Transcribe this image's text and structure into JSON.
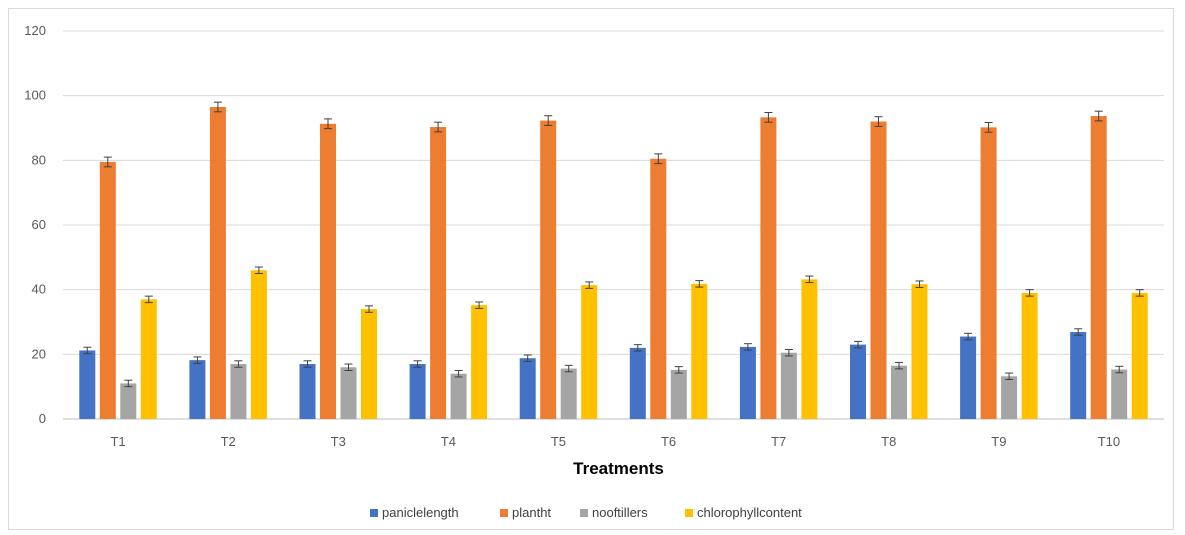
{
  "chart_data": {
    "type": "bar",
    "title": "",
    "xlabel": "Treatments",
    "ylabel": "",
    "ylim": [
      0,
      120
    ],
    "yticks": [
      0,
      20,
      40,
      60,
      80,
      100,
      120
    ],
    "grid": true,
    "legend_position": "bottom",
    "categories": [
      "T1",
      "T2",
      "T3",
      "T4",
      "T5",
      "T6",
      "T7",
      "T8",
      "T9",
      "T10"
    ],
    "series": [
      {
        "name": "paniclelength",
        "color": "#4472C4",
        "values": [
          21.2,
          18.2,
          17.0,
          17.0,
          18.8,
          22.0,
          22.3,
          23.0,
          25.5,
          26.9
        ],
        "error": [
          1.0,
          1.0,
          1.0,
          1.0,
          1.0,
          1.0,
          1.0,
          1.0,
          1.0,
          1.0
        ]
      },
      {
        "name": "plantht",
        "color": "#ED7D31",
        "values": [
          79.5,
          96.5,
          91.3,
          90.3,
          92.3,
          80.5,
          93.3,
          92.0,
          90.2,
          93.7
        ],
        "error": [
          1.5,
          1.5,
          1.5,
          1.5,
          1.5,
          1.5,
          1.5,
          1.5,
          1.5,
          1.5
        ]
      },
      {
        "name": "nooftillers",
        "color": "#A5A5A5",
        "values": [
          11.0,
          17.0,
          16.0,
          14.0,
          15.6,
          15.2,
          20.5,
          16.5,
          13.2,
          15.3
        ],
        "error": [
          1.0,
          1.0,
          1.0,
          1.0,
          1.0,
          1.0,
          1.0,
          1.0,
          1.0,
          1.0
        ]
      },
      {
        "name": "chlorophyllcontent",
        "color": "#FFC000",
        "values": [
          37.0,
          46.0,
          34.0,
          35.2,
          41.4,
          41.8,
          43.2,
          41.7,
          39.0,
          39.0
        ],
        "error": [
          1.0,
          1.0,
          1.0,
          1.0,
          1.0,
          1.0,
          1.0,
          1.0,
          1.0,
          1.0
        ]
      }
    ]
  }
}
